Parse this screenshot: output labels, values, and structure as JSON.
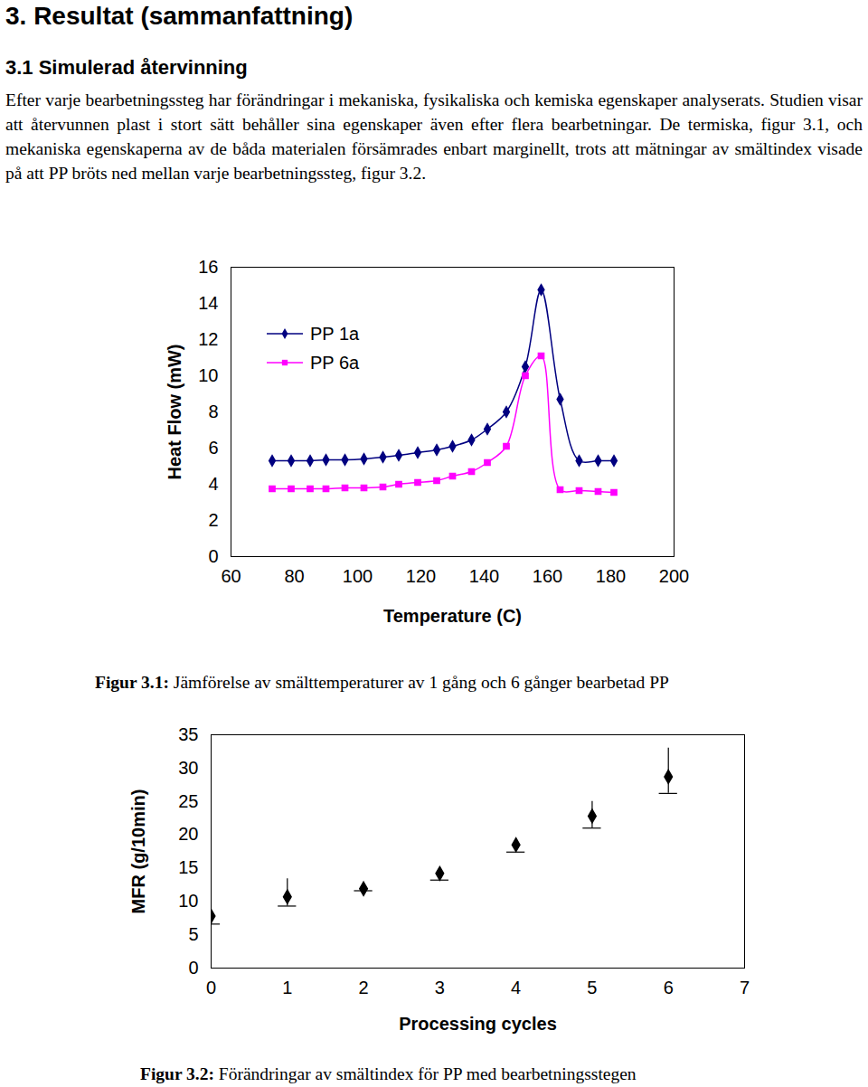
{
  "header": {
    "title": "3. Resultat (sammanfattning)",
    "section": "3.1 Simulerad återvinning"
  },
  "paragraph": "Efter varje bearbetningssteg har förändringar i mekaniska, fysikaliska och kemiska egenskaper analyserats. Studien visar att återvunnen plast i stort sätt behåller sina egenskaper även efter flera bearbetningar. De termiska, figur 3.1, och mekaniska egenskaperna av de båda materialen försämrades enbart marginellt, trots att mätningar av smältindex visade på att PP bröts ned mellan varje bearbetningssteg, figur 3.2.",
  "chart_data": [
    {
      "type": "line",
      "title": "Figur 3.1: Jämförelse av smälttemperaturer av 1 gång och 6 gånger bearbetad PP",
      "x_label": "Temperature (C)",
      "y_label": "Heat Flow (mW)",
      "x": [
        73,
        79,
        85,
        90,
        96,
        102,
        108,
        113,
        119,
        125,
        130,
        136,
        141,
        147,
        153,
        158,
        164,
        170,
        176,
        181
      ],
      "series": [
        {
          "name": "PP 1a",
          "color": "#000080",
          "marker": "diamond",
          "values": [
            5.3,
            5.3,
            5.3,
            5.35,
            5.35,
            5.4,
            5.5,
            5.6,
            5.75,
            5.9,
            6.1,
            6.45,
            7.05,
            8.0,
            10.5,
            14.75,
            8.7,
            5.3,
            5.3,
            5.3
          ]
        },
        {
          "name": "PP 6a",
          "color": "#ff00ff",
          "marker": "square",
          "values": [
            3.75,
            3.75,
            3.75,
            3.75,
            3.8,
            3.8,
            3.85,
            4.0,
            4.1,
            4.2,
            4.45,
            4.7,
            5.2,
            6.1,
            10.0,
            11.1,
            3.7,
            3.65,
            3.6,
            3.55
          ]
        }
      ],
      "xlim": [
        60,
        200
      ],
      "xticks": [
        60,
        80,
        100,
        120,
        140,
        160,
        180,
        200
      ],
      "ylim": [
        0,
        16
      ],
      "yticks": [
        0,
        2,
        4,
        6,
        8,
        10,
        12,
        14,
        16
      ],
      "legend": "top-left",
      "grid": false
    },
    {
      "type": "scatter",
      "title": "Figur 3.2: Förändringar av smältindex för PP med bearbetningsstegen",
      "x_label": "Processing cycles",
      "y_label": "MFR (g/10min)",
      "x": [
        0,
        1,
        2,
        3,
        4,
        5,
        6
      ],
      "values": [
        7.8,
        10.7,
        11.9,
        14.2,
        18.5,
        22.8,
        28.7
      ],
      "error_bars": [
        [
          6.6,
          7.8
        ],
        [
          9.3,
          13.4
        ],
        [
          11.6,
          12.2
        ],
        [
          13.2,
          15.0
        ],
        [
          17.4,
          19.0
        ],
        [
          21.0,
          25.0
        ],
        [
          26.2,
          33.0
        ]
      ],
      "color": "#000000",
      "marker": "diamond",
      "xlim": [
        0,
        7
      ],
      "xticks": [
        0,
        1,
        2,
        3,
        4,
        5,
        6,
        7
      ],
      "ylim": [
        0,
        35
      ],
      "yticks": [
        0,
        5,
        10,
        15,
        20,
        25,
        30,
        35
      ],
      "grid": false
    }
  ]
}
